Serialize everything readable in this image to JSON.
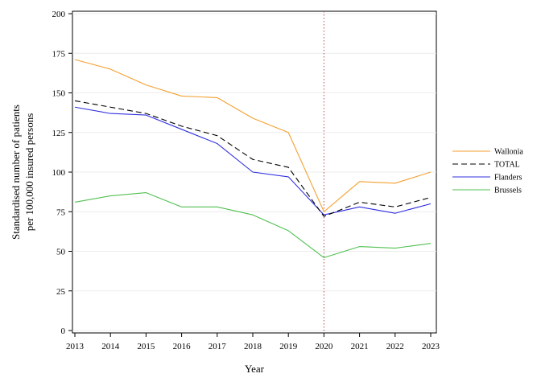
{
  "chart_data": {
    "type": "line",
    "xlabel": "Year",
    "ylabel_lines": [
      "Standardised number of patients",
      "per 100,000 insured persons"
    ],
    "x": [
      2013,
      2014,
      2015,
      2016,
      2017,
      2018,
      2019,
      2020,
      2021,
      2022,
      2023
    ],
    "xticks": [
      "2013",
      "2014",
      "2015",
      "2016",
      "2017",
      "2018",
      "2019",
      "2020",
      "2021",
      "2022",
      "2023"
    ],
    "yticks": [
      "0",
      "25",
      "50",
      "75",
      "100",
      "125",
      "150",
      "175",
      "200"
    ],
    "ylim": [
      0,
      200
    ],
    "grid": "horizontal",
    "reference_line_x": 2020,
    "legend_position": "right",
    "series": [
      {
        "name": "Wallonia",
        "color": "#f5a030",
        "dashed": false,
        "values": [
          171,
          165,
          155,
          148,
          147,
          134,
          125,
          75,
          94,
          93,
          100
        ]
      },
      {
        "name": "TOTAL",
        "color": "#000000",
        "dashed": true,
        "values": [
          145,
          141,
          137,
          129,
          123,
          108,
          103,
          72,
          81,
          78,
          84
        ]
      },
      {
        "name": "Flanders",
        "color": "#3030e0",
        "dashed": false,
        "values": [
          141,
          137,
          136,
          127,
          118,
          100,
          97,
          73,
          78,
          74,
          80
        ]
      },
      {
        "name": "Brussels",
        "color": "#50c050",
        "dashed": false,
        "values": [
          81,
          85,
          87,
          78,
          78,
          73,
          63,
          46,
          53,
          52,
          55
        ]
      }
    ]
  }
}
